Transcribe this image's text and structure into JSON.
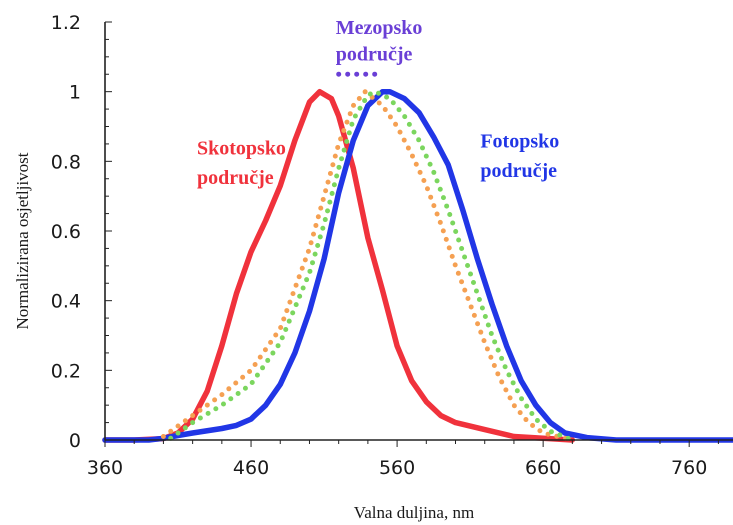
{
  "chart_data": {
    "type": "line",
    "xlabel": "Valna duljina, nm",
    "ylabel": "Normalizirana osjetljivost",
    "xlim": [
      360,
      790
    ],
    "ylim": [
      0,
      1.2
    ],
    "xticks": [
      "360",
      "460",
      "560",
      "660",
      "760"
    ],
    "yticks": [
      "0",
      "0.2",
      "0.4",
      "0.6",
      "0.8",
      "1",
      "1.2"
    ],
    "grid": false,
    "series": [
      {
        "name": "Skotopsko područje",
        "color": "#f0323c",
        "style": "solid",
        "points": [
          [
            360,
            0
          ],
          [
            380,
            0
          ],
          [
            400,
            0.004
          ],
          [
            410,
            0.02
          ],
          [
            420,
            0.06
          ],
          [
            430,
            0.14
          ],
          [
            440,
            0.27
          ],
          [
            450,
            0.42
          ],
          [
            460,
            0.54
          ],
          [
            470,
            0.63
          ],
          [
            480,
            0.73
          ],
          [
            490,
            0.86
          ],
          [
            500,
            0.97
          ],
          [
            507,
            1.0
          ],
          [
            515,
            0.98
          ],
          [
            520,
            0.93
          ],
          [
            530,
            0.78
          ],
          [
            540,
            0.58
          ],
          [
            550,
            0.43
          ],
          [
            560,
            0.27
          ],
          [
            570,
            0.17
          ],
          [
            580,
            0.11
          ],
          [
            590,
            0.07
          ],
          [
            600,
            0.05
          ],
          [
            620,
            0.03
          ],
          [
            640,
            0.01
          ],
          [
            660,
            0.005
          ],
          [
            680,
            0.0
          ]
        ]
      },
      {
        "name": "Fotopsko područje",
        "color": "#2136e6",
        "style": "solid",
        "points": [
          [
            360,
            0
          ],
          [
            390,
            0
          ],
          [
            400,
            0.005
          ],
          [
            410,
            0.013
          ],
          [
            420,
            0.02
          ],
          [
            440,
            0.033
          ],
          [
            450,
            0.042
          ],
          [
            460,
            0.06
          ],
          [
            470,
            0.1
          ],
          [
            480,
            0.16
          ],
          [
            490,
            0.25
          ],
          [
            500,
            0.37
          ],
          [
            510,
            0.52
          ],
          [
            520,
            0.71
          ],
          [
            530,
            0.86
          ],
          [
            540,
            0.96
          ],
          [
            550,
            1.0
          ],
          [
            555,
            1.0
          ],
          [
            565,
            0.98
          ],
          [
            575,
            0.94
          ],
          [
            585,
            0.87
          ],
          [
            595,
            0.79
          ],
          [
            605,
            0.66
          ],
          [
            615,
            0.52
          ],
          [
            625,
            0.39
          ],
          [
            635,
            0.27
          ],
          [
            645,
            0.17
          ],
          [
            655,
            0.1
          ],
          [
            665,
            0.05
          ],
          [
            675,
            0.02
          ],
          [
            690,
            0.007
          ],
          [
            710,
            0.0
          ],
          [
            790,
            0.0
          ]
        ]
      },
      {
        "name": "",
        "color": "#f5a052",
        "style": "dotted",
        "points": [
          [
            400,
            0.01
          ],
          [
            420,
            0.07
          ],
          [
            440,
            0.13
          ],
          [
            460,
            0.2
          ],
          [
            480,
            0.32
          ],
          [
            500,
            0.55
          ],
          [
            510,
            0.7
          ],
          [
            520,
            0.85
          ],
          [
            530,
            0.96
          ],
          [
            538,
            1.0
          ],
          [
            550,
            0.96
          ],
          [
            560,
            0.9
          ],
          [
            570,
            0.82
          ],
          [
            580,
            0.73
          ],
          [
            590,
            0.62
          ],
          [
            600,
            0.5
          ],
          [
            610,
            0.39
          ],
          [
            620,
            0.28
          ],
          [
            630,
            0.18
          ],
          [
            640,
            0.1
          ],
          [
            650,
            0.05
          ],
          [
            660,
            0.02
          ],
          [
            680,
            0.0
          ]
        ]
      },
      {
        "name": "",
        "color": "#7bd65e",
        "style": "dotted",
        "points": [
          [
            405,
            0.005
          ],
          [
            420,
            0.05
          ],
          [
            440,
            0.1
          ],
          [
            460,
            0.16
          ],
          [
            480,
            0.28
          ],
          [
            500,
            0.48
          ],
          [
            510,
            0.62
          ],
          [
            520,
            0.78
          ],
          [
            530,
            0.92
          ],
          [
            540,
            0.99
          ],
          [
            545,
            1.0
          ],
          [
            555,
            0.98
          ],
          [
            565,
            0.93
          ],
          [
            575,
            0.86
          ],
          [
            585,
            0.77
          ],
          [
            595,
            0.66
          ],
          [
            605,
            0.54
          ],
          [
            615,
            0.42
          ],
          [
            625,
            0.3
          ],
          [
            635,
            0.2
          ],
          [
            645,
            0.12
          ],
          [
            655,
            0.06
          ],
          [
            665,
            0.025
          ],
          [
            680,
            0.0
          ]
        ]
      },
      {
        "name": "Mezopsko područje",
        "color": "#6a3fd6",
        "style": "dotted",
        "points": [
          [
            520,
            1.05
          ],
          [
            548,
            1.05
          ]
        ]
      }
    ],
    "annotations": [
      {
        "text": "Skotopsko",
        "color": "#f0323c",
        "x": 423,
        "y": 0.82
      },
      {
        "text": "područje",
        "color": "#f0323c",
        "x": 423,
        "y": 0.735
      },
      {
        "text": "Fotopsko",
        "color": "#2136e6",
        "x": 617,
        "y": 0.84
      },
      {
        "text": "područje",
        "color": "#2136e6",
        "x": 617,
        "y": 0.755
      },
      {
        "text": "Mezopsko",
        "color": "#6a3fd6",
        "x": 518,
        "y": 1.165
      },
      {
        "text": "područje",
        "color": "#6a3fd6",
        "x": 518,
        "y": 1.09
      }
    ]
  }
}
